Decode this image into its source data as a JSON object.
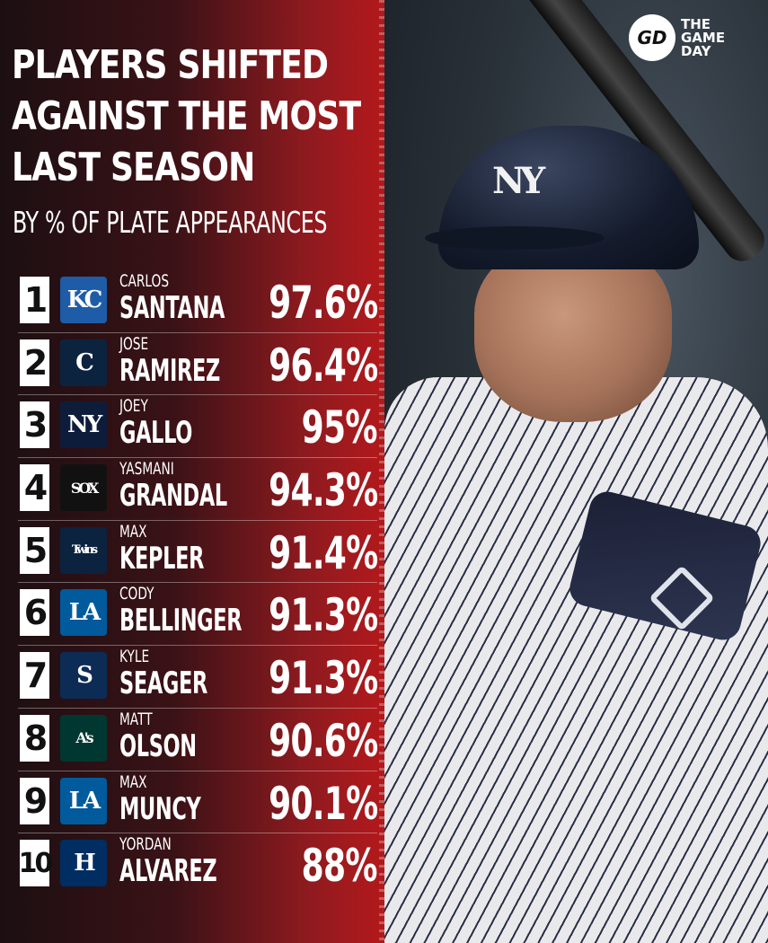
{
  "brand": {
    "mark": "GD",
    "line1": "THE",
    "line2": "GAME",
    "line3": "DAY"
  },
  "title": {
    "line1": "PLAYERS SHIFTED",
    "line2": "AGAINST THE MOST",
    "line3": "LAST SEASON"
  },
  "subtitle": "BY % OF PLATE APPEARANCES",
  "helmet_logo": "NY",
  "players": [
    {
      "rank": "1",
      "first": "CARLOS",
      "last": "SANTANA",
      "pct": "97.6%",
      "team_icon": "royals-logo-icon",
      "team_symbol": "KC",
      "color": "#1f5ca8"
    },
    {
      "rank": "2",
      "first": "JOSE",
      "last": "RAMIREZ",
      "pct": "96.4%",
      "team_icon": "guardians-logo-icon",
      "team_symbol": "C",
      "color": "#0c2340"
    },
    {
      "rank": "3",
      "first": "JOEY",
      "last": "GALLO",
      "pct": "95%",
      "team_icon": "yankees-logo-icon",
      "team_symbol": "NY",
      "color": "#0e1c3c"
    },
    {
      "rank": "4",
      "first": "YASMANI",
      "last": "GRANDAL",
      "pct": "94.3%",
      "team_icon": "white-sox-logo-icon",
      "team_symbol": "SOX",
      "color": "#111111"
    },
    {
      "rank": "5",
      "first": "MAX",
      "last": "KEPLER",
      "pct": "91.4%",
      "team_icon": "twins-logo-icon",
      "team_symbol": "Twins",
      "color": "#0c2340"
    },
    {
      "rank": "6",
      "first": "CODY",
      "last": "BELLINGER",
      "pct": "91.3%",
      "team_icon": "dodgers-logo-icon",
      "team_symbol": "LA",
      "color": "#005a9c"
    },
    {
      "rank": "7",
      "first": "KYLE",
      "last": "SEAGER",
      "pct": "91.3%",
      "team_icon": "mariners-logo-icon",
      "team_symbol": "S",
      "color": "#0c2c56"
    },
    {
      "rank": "8",
      "first": "MATT",
      "last": "OLSON",
      "pct": "90.6%",
      "team_icon": "athletics-logo-icon",
      "team_symbol": "A's",
      "color": "#003831"
    },
    {
      "rank": "9",
      "first": "MAX",
      "last": "MUNCY",
      "pct": "90.1%",
      "team_icon": "dodgers-logo-icon",
      "team_symbol": "LA",
      "color": "#005a9c"
    },
    {
      "rank": "10",
      "first": "YORDAN",
      "last": "ALVAREZ",
      "pct": "88%",
      "team_icon": "astros-logo-icon",
      "team_symbol": "H",
      "color": "#002d62"
    }
  ]
}
